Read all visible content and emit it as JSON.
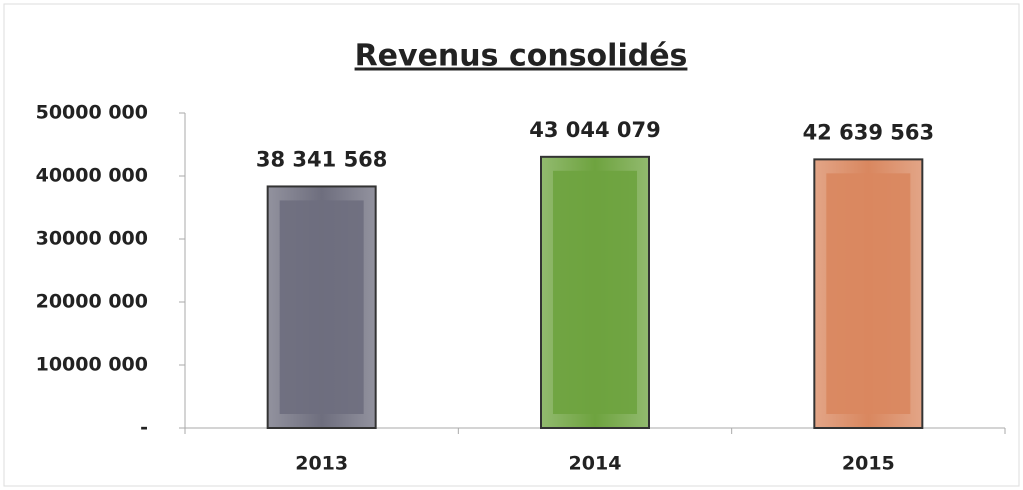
{
  "chart_data": {
    "type": "bar",
    "title": "Revenus consolidés",
    "categories": [
      "2013",
      "2014",
      "2015"
    ],
    "values": [
      38341568,
      43044079,
      42639563
    ],
    "value_labels": [
      "38 341 568",
      "43 044 079",
      "42 639 563"
    ],
    "colors": [
      "#6e6e7e",
      "#6ea33f",
      "#d9875f"
    ],
    "ylim": [
      0,
      50000000
    ],
    "yticks": [
      {
        "value": 0,
        "label": "-"
      },
      {
        "value": 10000000,
        "label": "10000 000"
      },
      {
        "value": 20000000,
        "label": "20000 000"
      },
      {
        "value": 30000000,
        "label": "30000 000"
      },
      {
        "value": 40000000,
        "label": "40000 000"
      },
      {
        "value": 50000000,
        "label": "50000 000"
      }
    ],
    "grid": false
  }
}
